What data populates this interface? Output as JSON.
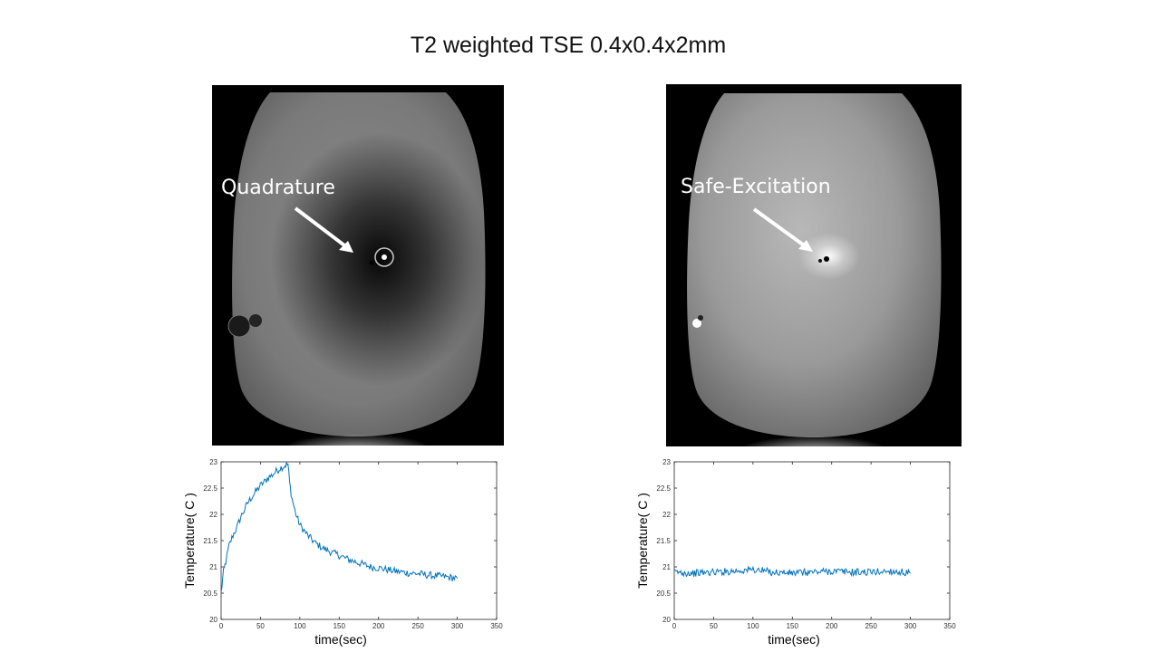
{
  "slide": {
    "title": "T2 weighted TSE 0.4x0.4x2mm"
  },
  "images": {
    "left": {
      "label": "Quadrature"
    },
    "right": {
      "label": "Safe-Excitation"
    }
  },
  "colors": {
    "line": "#0072BD",
    "axis": "#262626",
    "label_text": "#ffffff"
  },
  "chart_data": [
    {
      "type": "line",
      "title": "",
      "xlabel": "time(sec)",
      "ylabel": "Temperature( C )",
      "xlim": [
        0,
        350
      ],
      "ylim": [
        20,
        23
      ],
      "xticks": [
        0,
        50,
        100,
        150,
        200,
        250,
        300,
        350
      ],
      "xticklabels": [
        "0",
        "50",
        "100",
        "150",
        "200",
        "250",
        "300",
        "350"
      ],
      "yticks": [
        20,
        20.5,
        21,
        21.5,
        22,
        22.5,
        23
      ],
      "yticklabels": [
        "20",
        "20.5",
        "21",
        "21.5",
        "22",
        "22.5",
        "23"
      ],
      "series": [
        {
          "name": "Quadrature",
          "x": [
            0,
            3,
            6,
            10,
            15,
            20,
            25,
            30,
            35,
            40,
            45,
            50,
            55,
            60,
            65,
            70,
            75,
            80,
            83,
            85,
            87,
            90,
            95,
            100,
            110,
            120,
            130,
            140,
            150,
            160,
            170,
            180,
            190,
            200,
            210,
            220,
            230,
            240,
            250,
            260,
            270,
            280,
            290,
            300
          ],
          "y": [
            20.5,
            20.9,
            21.1,
            21.4,
            21.6,
            21.75,
            21.95,
            22.1,
            22.25,
            22.35,
            22.45,
            22.55,
            22.62,
            22.7,
            22.75,
            22.82,
            22.88,
            22.92,
            22.95,
            22.95,
            22.6,
            22.3,
            22.0,
            21.8,
            21.6,
            21.45,
            21.35,
            21.28,
            21.22,
            21.15,
            21.1,
            21.05,
            21.0,
            20.98,
            20.95,
            20.92,
            20.9,
            20.88,
            20.87,
            20.85,
            20.83,
            20.82,
            20.8,
            20.78
          ]
        }
      ]
    },
    {
      "type": "line",
      "title": "",
      "xlabel": "time(sec)",
      "ylabel": "Temperature( C )",
      "xlim": [
        0,
        350
      ],
      "ylim": [
        20,
        23
      ],
      "xticks": [
        0,
        50,
        100,
        150,
        200,
        250,
        300,
        350
      ],
      "xticklabels": [
        "0",
        "50",
        "100",
        "150",
        "200",
        "250",
        "300",
        "350"
      ],
      "yticks": [
        20,
        20.5,
        21,
        21.5,
        22,
        22.5,
        23
      ],
      "yticklabels": [
        "20",
        "20.5",
        "21",
        "21.5",
        "22",
        "22.5",
        "23"
      ],
      "series": [
        {
          "name": "Safe-Excitation",
          "x": [
            0,
            25,
            50,
            75,
            100,
            125,
            150,
            175,
            200,
            225,
            250,
            275,
            300
          ],
          "y": [
            20.9,
            20.88,
            20.9,
            20.92,
            20.95,
            20.9,
            20.88,
            20.9,
            20.92,
            20.9,
            20.9,
            20.92,
            20.88
          ]
        }
      ]
    }
  ]
}
